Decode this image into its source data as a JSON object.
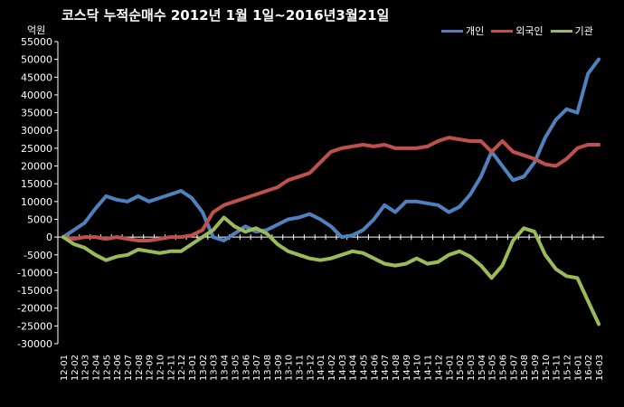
{
  "title": "코스닥  누적순매수 2012년 1월 1일~2016년3월21일",
  "unit": "억원",
  "colors": {
    "background": "#000000",
    "axis": "#ffffff"
  },
  "chart_data": {
    "type": "line",
    "title": "코스닥  누적순매수 2012년 1월 1일~2016년3월21일",
    "ylabel": "억원",
    "ylim": [
      -30000,
      55000
    ],
    "yticks": [
      55000,
      50000,
      45000,
      40000,
      35000,
      30000,
      25000,
      20000,
      15000,
      10000,
      5000,
      0,
      -5000,
      -10000,
      -15000,
      -20000,
      -25000,
      -30000
    ],
    "grid": false,
    "legend_position": "top-right",
    "x": [
      "12-01",
      "12-02",
      "12-03",
      "12-04",
      "12-05",
      "12-06",
      "12-07",
      "12-08",
      "12-09",
      "12-10",
      "12-11",
      "12-12",
      "13-01",
      "13-02",
      "13-03",
      "13-04",
      "13-05",
      "13-06",
      "13-07",
      "13-08",
      "13-09",
      "13-10",
      "13-11",
      "13-12",
      "14-01",
      "14-02",
      "14-03",
      "14-04",
      "14-05",
      "14-06",
      "14-07",
      "14-08",
      "14-09",
      "14-10",
      "14-11",
      "14-12",
      "15-01",
      "15-02",
      "15-03",
      "15-04",
      "15-05",
      "15-06",
      "15-07",
      "15-08",
      "15-09",
      "15-10",
      "15-11",
      "15-12",
      "16-01",
      "16-02",
      "16-03"
    ],
    "series": [
      {
        "name": "개인",
        "color": "#4f81bd",
        "values": [
          0,
          2000,
          4000,
          8000,
          11500,
          10500,
          10000,
          11500,
          10000,
          11000,
          12000,
          13000,
          11000,
          7000,
          0,
          -1000,
          1000,
          3000,
          1500,
          2000,
          3500,
          5000,
          5500,
          6500,
          5000,
          3000,
          0,
          500,
          2000,
          5000,
          9000,
          7000,
          10000,
          10000,
          9500,
          9000,
          7000,
          8500,
          12000,
          17000,
          24000,
          20000,
          16000,
          17000,
          21000,
          28000,
          33000,
          36000,
          35000,
          46000,
          50000
        ]
      },
      {
        "name": "외국인",
        "color": "#c0504d",
        "values": [
          0,
          -500,
          0,
          0,
          -500,
          0,
          -500,
          -1000,
          -1000,
          -500,
          0,
          0,
          500,
          2000,
          7000,
          9000,
          10000,
          11000,
          12000,
          13000,
          14000,
          16000,
          17000,
          18000,
          21000,
          24000,
          25000,
          25500,
          26000,
          25500,
          26000,
          25000,
          25000,
          25000,
          25500,
          27000,
          28000,
          27500,
          27000,
          27000,
          24000,
          27000,
          24000,
          23000,
          22000,
          20500,
          20000,
          22000,
          25000,
          26000,
          26000
        ]
      },
      {
        "name": "기관",
        "color": "#9bbb59",
        "values": [
          0,
          -2000,
          -3000,
          -5000,
          -6500,
          -5500,
          -5000,
          -3500,
          -4000,
          -4500,
          -4000,
          -4000,
          -2000,
          0,
          2000,
          5500,
          3000,
          1500,
          2500,
          1000,
          -2000,
          -4000,
          -5000,
          -6000,
          -6500,
          -6000,
          -5000,
          -4000,
          -4500,
          -6000,
          -7500,
          -8000,
          -7500,
          -6000,
          -7500,
          -7000,
          -5000,
          -4000,
          -5500,
          -8000,
          -11500,
          -8000,
          -1000,
          2500,
          1500,
          -5000,
          -9000,
          -11000,
          -11500,
          -18000,
          -24500
        ]
      }
    ]
  }
}
